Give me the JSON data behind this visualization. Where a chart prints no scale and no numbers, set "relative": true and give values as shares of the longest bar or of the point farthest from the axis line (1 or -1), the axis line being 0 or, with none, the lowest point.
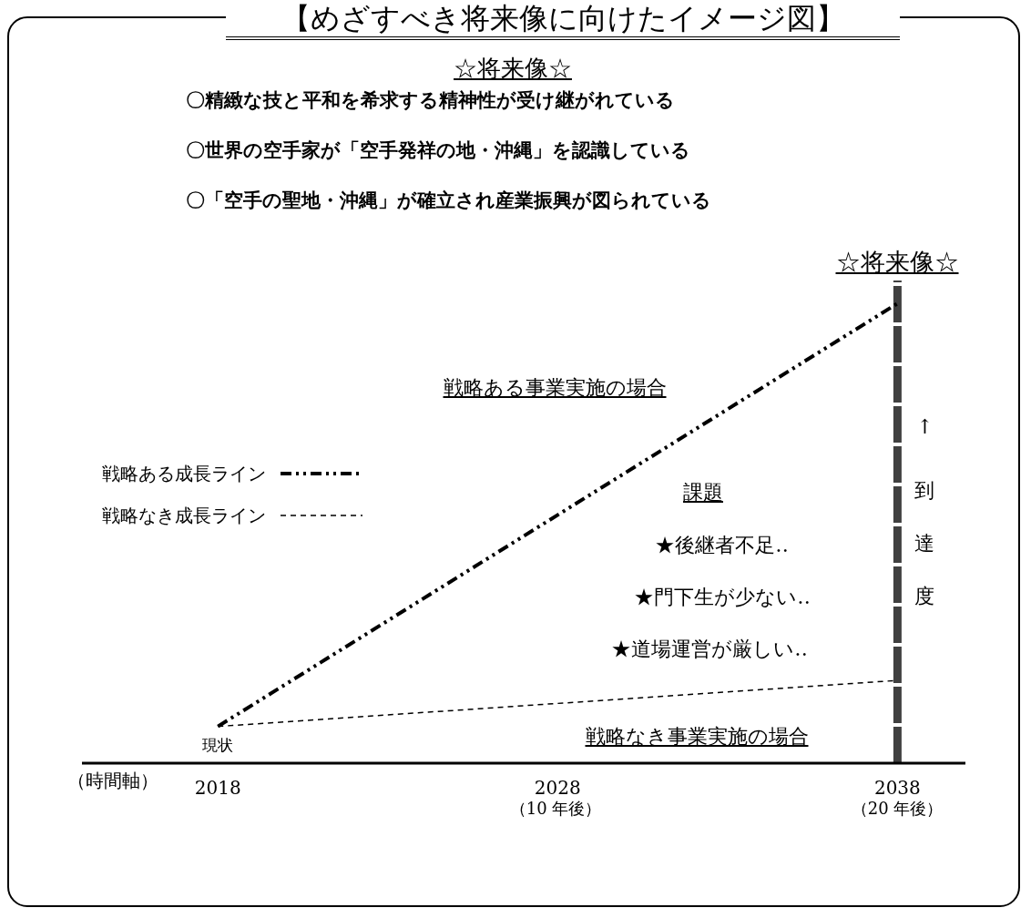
{
  "chart_data": {
    "type": "line",
    "title": "【めざすべき将来像に向けたイメージ図】",
    "subtitle": "☆将来像☆",
    "xlabel": "（時間軸）",
    "x": [
      2018,
      2038
    ],
    "relative": true,
    "xlim": [
      2014,
      2040
    ],
    "xticks": [
      2018,
      2028,
      2038
    ],
    "series": [
      {
        "name": "戦略ある成長ライン",
        "color": "#000000",
        "values": [
          0.08,
          1
        ],
        "line_style": "dashed"
      },
      {
        "name": "戦略なき成長ライン",
        "color": "#000000",
        "values": [
          0.08,
          0.18
        ],
        "line_style": "dashed"
      }
    ],
    "ref_lines": [
      {
        "axis": "x",
        "value": 2038,
        "label": "↑到達度",
        "color": "#404040"
      }
    ],
    "annotations": [
      "〇精緻な技と平和を希求する精神性が受け継がれている",
      "〇世界の空手家が「空手発祥の地・沖縄」を認識している",
      "〇「空手の聖地・沖縄」が確立され産業振興が図られている",
      "戦略ある事業実施の場合",
      "課題",
      "★後継者不足‥",
      "★門下生が少ない‥",
      "★道場運営が厳しい‥",
      "戦略なき事業実施の場合",
      "（10 年後）",
      "（20 年後）",
      {
        "text": "現状",
        "x": 2018,
        "y": 0.08
      },
      "☆将来像☆"
    ],
    "legend": "left",
    "marker": "none"
  }
}
